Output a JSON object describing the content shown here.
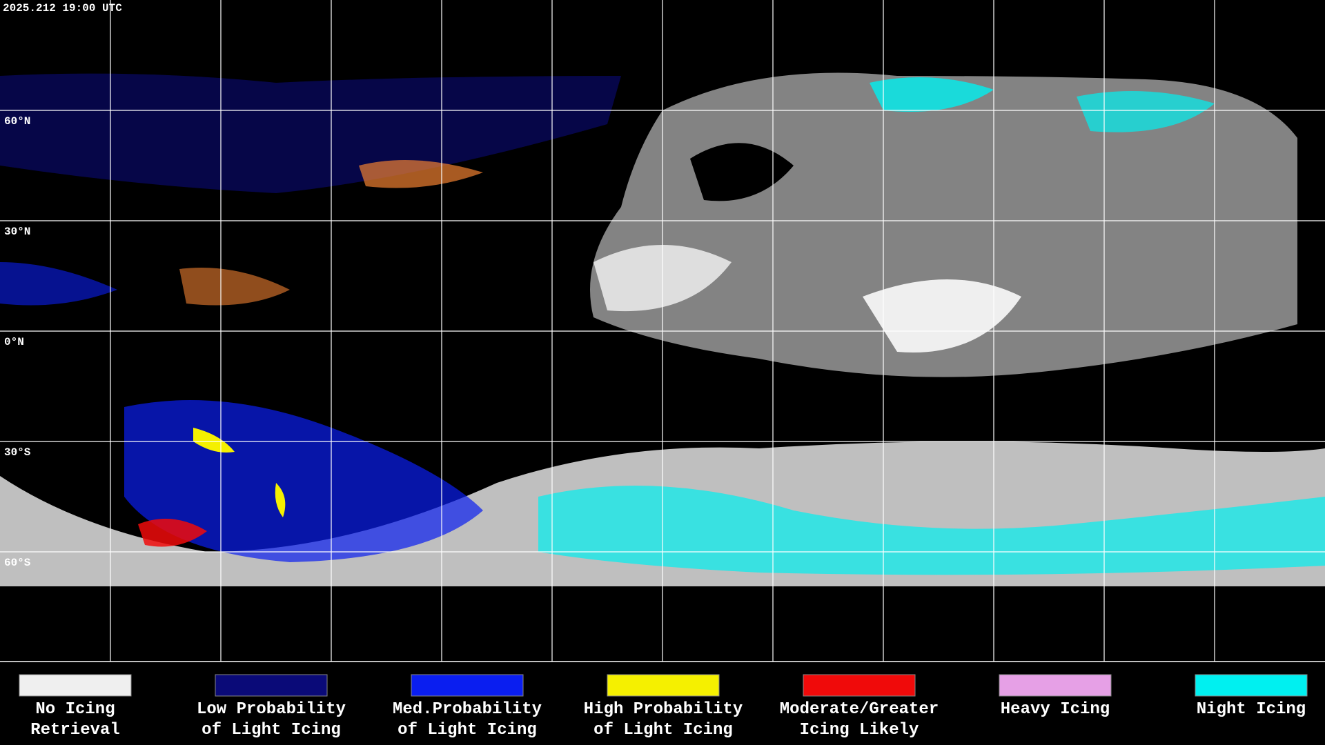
{
  "header": {
    "timestamp": "2025.212 19:00 UTC"
  },
  "map": {
    "latitude_labels": [
      "60°N",
      "30°N",
      "0°N",
      "30°S",
      "60°S"
    ]
  },
  "legend": [
    {
      "lines": [
        "No Icing",
        "Retrieval"
      ],
      "color": "#efefef"
    },
    {
      "lines": [
        "Low Probability",
        "of Light Icing"
      ],
      "color": "#0a0a78"
    },
    {
      "lines": [
        "Med.Probability",
        "of Light Icing"
      ],
      "color": "#0a1ef0"
    },
    {
      "lines": [
        "High Probability",
        "of Light Icing"
      ],
      "color": "#f5f000"
    },
    {
      "lines": [
        "Moderate/Greater",
        "Icing Likely"
      ],
      "color": "#f00a0a"
    },
    {
      "lines": [
        "Heavy Icing"
      ],
      "color": "#e6a0e6"
    },
    {
      "lines": [
        "Night Icing"
      ],
      "color": "#00f0f0"
    }
  ]
}
